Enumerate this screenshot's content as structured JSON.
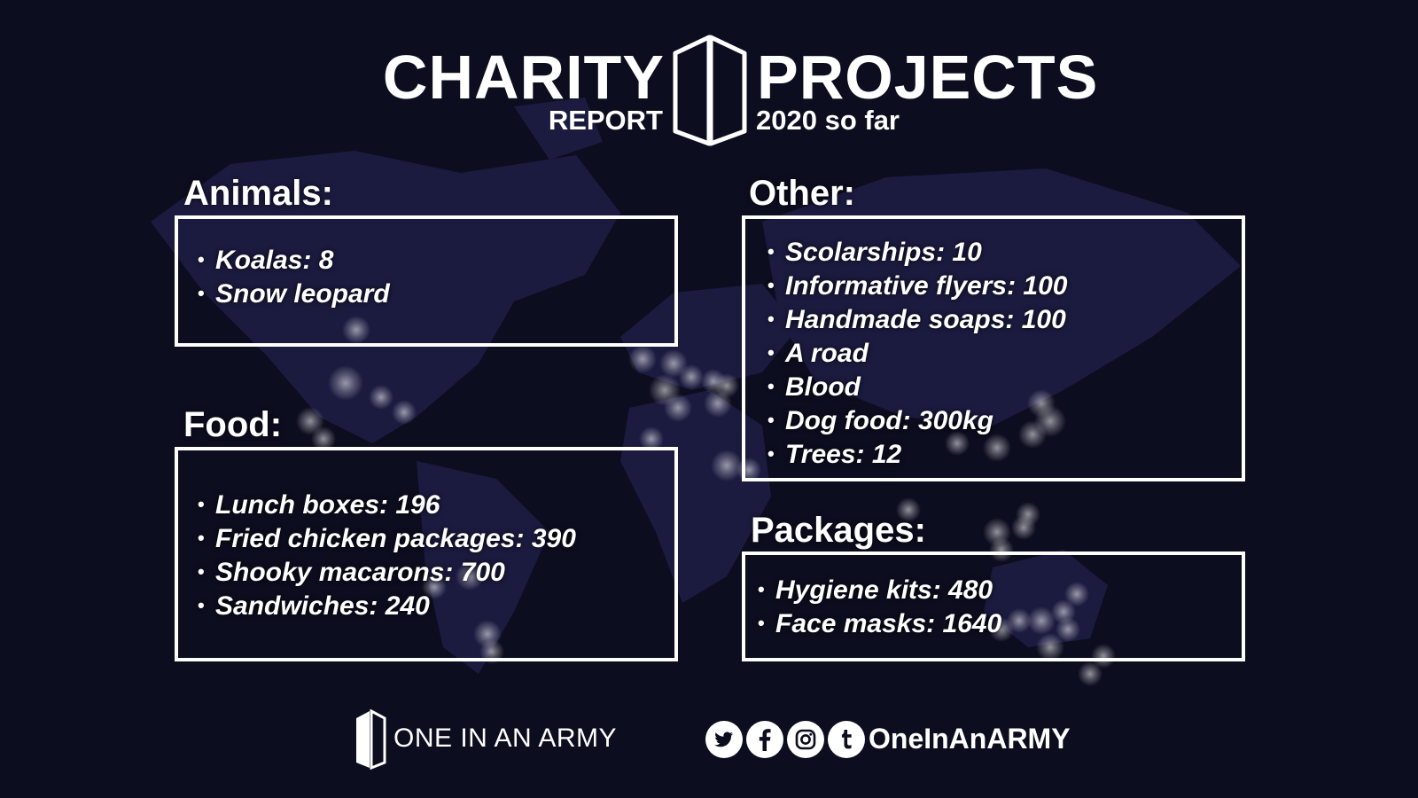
{
  "header": {
    "title_left": "CHARITY",
    "title_right": "PROJECTS",
    "sub_left": "REPORT",
    "sub_right": "2020 so far"
  },
  "sections": {
    "animals": {
      "title": "Animals:",
      "items": [
        "Koalas: 8",
        "Snow leopard"
      ]
    },
    "food": {
      "title": "Food:",
      "items": [
        "Lunch boxes: 196",
        "Fried chicken packages: 390",
        "Shooky macarons: 700",
        "Sandwiches: 240"
      ]
    },
    "other": {
      "title": "Other:",
      "items": [
        "Scolarships: 10",
        "Informative flyers: 100",
        "Handmade soaps: 100",
        "A road",
        "Blood",
        "Dog food: 300kg",
        "Trees: 12"
      ]
    },
    "packages": {
      "title": "Packages:",
      "items": [
        "Hygiene kits: 480",
        "Face masks: 1640"
      ]
    }
  },
  "footer": {
    "brand": "ONE IN AN ARMY",
    "handle": "OneInAnARMY",
    "social_icons": [
      "twitter-icon",
      "facebook-icon",
      "instagram-icon",
      "tumblr-icon"
    ]
  },
  "colors": {
    "background": "#0d0d20",
    "map": "#1b1b40",
    "text": "#ffffff",
    "box_border": "#ffffff"
  }
}
